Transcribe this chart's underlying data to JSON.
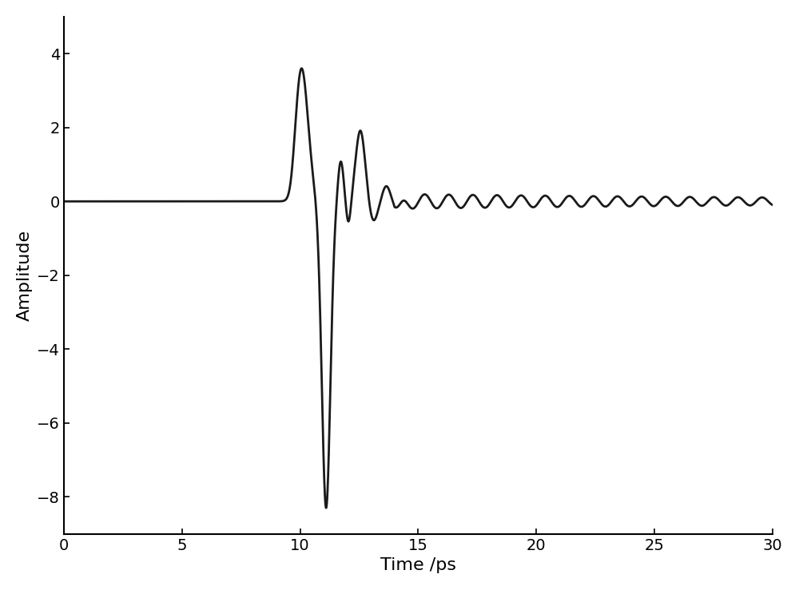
{
  "xlim": [
    0,
    30
  ],
  "ylim": [
    -9,
    5
  ],
  "xlabel": "Time /ps",
  "ylabel": "Amplitude",
  "xticks": [
    0,
    5,
    10,
    15,
    20,
    25,
    30
  ],
  "yticks": [
    -8,
    -6,
    -4,
    -2,
    0,
    2,
    4
  ],
  "line_color": "#1a1a1a",
  "line_width": 2.0,
  "background_color": "#ffffff",
  "xlabel_fontsize": 16,
  "ylabel_fontsize": 16,
  "tick_fontsize": 14,
  "t_start": 0,
  "t_end": 30,
  "num_points": 8000
}
